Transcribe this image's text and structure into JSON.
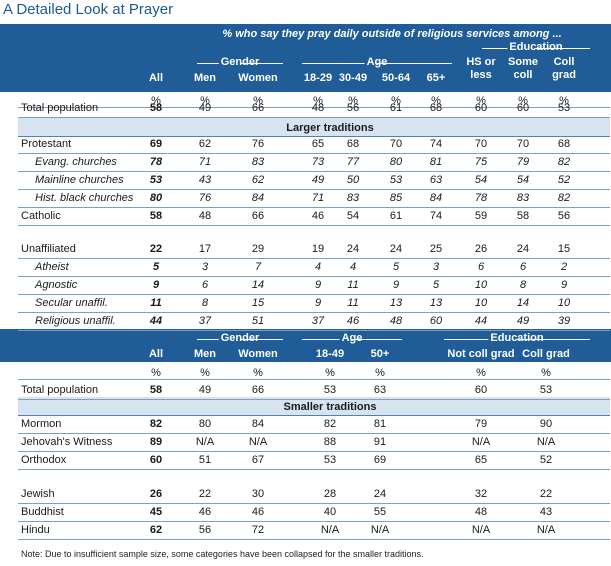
{
  "title": "A Detailed Look at Prayer",
  "subtitle": "% who say they pray daily outside of religious services among ...",
  "groups": {
    "gender": "Gender",
    "age": "Age",
    "education": "Education"
  },
  "cols1": [
    "All",
    "Men",
    "Women",
    "18-29",
    "30-49",
    "50-64",
    "65+",
    "HS or less",
    "Some coll",
    "Coll grad"
  ],
  "section1_heading": "Larger traditions",
  "rows1": [
    {
      "label": "Total population",
      "style": "normal",
      "values": [
        "58",
        "49",
        "66",
        "48",
        "56",
        "61",
        "68",
        "60",
        "60",
        "53"
      ]
    },
    {
      "label": "Protestant",
      "style": "normal",
      "values": [
        "69",
        "62",
        "76",
        "65",
        "68",
        "70",
        "74",
        "70",
        "70",
        "68"
      ]
    },
    {
      "label": "Evang. churches",
      "style": "sub",
      "values": [
        "78",
        "71",
        "83",
        "73",
        "77",
        "80",
        "81",
        "75",
        "79",
        "82"
      ]
    },
    {
      "label": "Mainline churches",
      "style": "sub",
      "values": [
        "53",
        "43",
        "62",
        "49",
        "50",
        "53",
        "63",
        "54",
        "54",
        "52"
      ]
    },
    {
      "label": "Hist. black churches",
      "style": "sub",
      "values": [
        "80",
        "76",
        "84",
        "71",
        "83",
        "85",
        "84",
        "78",
        "83",
        "82"
      ]
    },
    {
      "label": "Catholic",
      "style": "normal",
      "values": [
        "58",
        "48",
        "66",
        "46",
        "54",
        "61",
        "74",
        "59",
        "58",
        "56"
      ]
    },
    {
      "label": "Unaffiliated",
      "style": "normal",
      "values": [
        "22",
        "17",
        "29",
        "19",
        "24",
        "24",
        "25",
        "26",
        "24",
        "15"
      ]
    },
    {
      "label": "Atheist",
      "style": "sub",
      "values": [
        "5",
        "3",
        "7",
        "4",
        "4",
        "5",
        "3",
        "6",
        "6",
        "2"
      ]
    },
    {
      "label": "Agnostic",
      "style": "sub",
      "values": [
        "9",
        "6",
        "14",
        "9",
        "11",
        "9",
        "5",
        "10",
        "8",
        "9"
      ]
    },
    {
      "label": "Secular unaffil.",
      "style": "sub",
      "values": [
        "11",
        "8",
        "15",
        "9",
        "11",
        "13",
        "13",
        "10",
        "14",
        "10"
      ]
    },
    {
      "label": "Religious unaffil.",
      "style": "sub",
      "values": [
        "44",
        "37",
        "51",
        "37",
        "46",
        "48",
        "60",
        "44",
        "49",
        "39"
      ]
    }
  ],
  "cols2": [
    "All",
    "Men",
    "Women",
    "18-49",
    "50+",
    "Not coll grad",
    "Coll grad"
  ],
  "section2_heading": "Smaller traditions",
  "rows2": [
    {
      "label": "Total population",
      "values": [
        "58",
        "49",
        "66",
        "53",
        "63",
        "60",
        "53"
      ]
    },
    {
      "label": "Mormon",
      "values": [
        "82",
        "80",
        "84",
        "82",
        "81",
        "79",
        "90"
      ]
    },
    {
      "label": "Jehovah's Witness",
      "values": [
        "89",
        "N/A",
        "N/A",
        "88",
        "91",
        "N/A",
        "N/A"
      ]
    },
    {
      "label": "Orthodox",
      "values": [
        "60",
        "51",
        "67",
        "53",
        "69",
        "65",
        "52"
      ]
    },
    {
      "label": "Jewish",
      "values": [
        "26",
        "22",
        "30",
        "28",
        "24",
        "32",
        "22"
      ]
    },
    {
      "label": "Buddhist",
      "values": [
        "45",
        "46",
        "46",
        "40",
        "55",
        "48",
        "43"
      ]
    },
    {
      "label": "Hindu",
      "values": [
        "62",
        "56",
        "72",
        "N/A",
        "N/A",
        "N/A",
        "N/A"
      ]
    }
  ],
  "percent_sign": "%",
  "note": "Note: Due to insufficient sample size, some categories have been collapsed for the smaller traditions."
}
